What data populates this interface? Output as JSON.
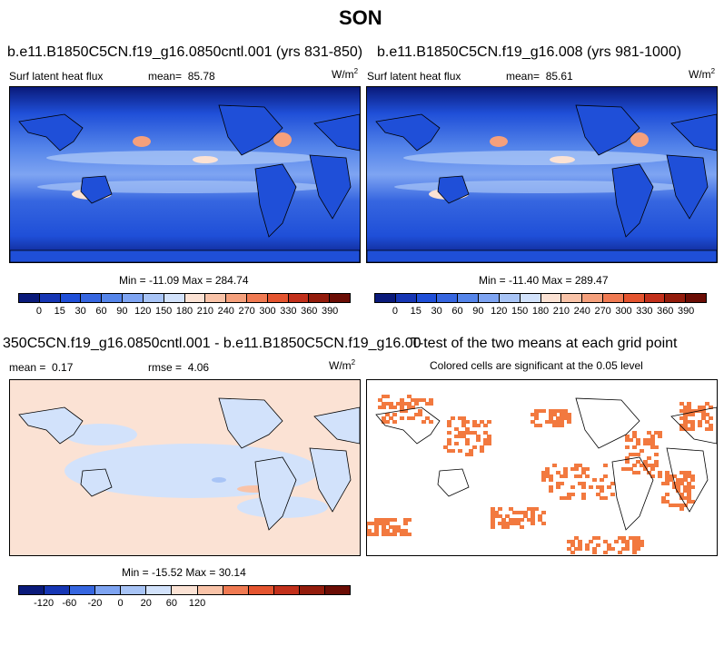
{
  "season": "SON",
  "panel1": {
    "title": "b.e11.B1850C5CN.f19_g16.0850cntl.001 (yrs 831-850)",
    "variable": "Surf latent heat flux",
    "mean_label": "mean=",
    "mean_value": "85.78",
    "units": "W/m",
    "units_sup": "2",
    "minmax": "Min = -11.09 Max = 284.74"
  },
  "panel2": {
    "title": "b.e11.B1850C5CN.f19_g16.008 (yrs 981-1000)",
    "variable": "Surf latent heat flux",
    "mean_label": "mean=",
    "mean_value": "85.61",
    "units": "W/m",
    "units_sup": "2",
    "minmax": "Min = -11.40 Max = 289.47"
  },
  "panel3": {
    "title": "350C5CN.f19_g16.0850cntl.001 - b.e11.B1850C5CN.f19_g16.008",
    "mean_label": "mean =",
    "mean_value": "0.17",
    "rmse_label": "rmse =",
    "rmse_value": "4.06",
    "units": "W/m",
    "units_sup": "2",
    "minmax": "Min = -15.52 Max = 30.14"
  },
  "panel4": {
    "title": "T-test of the two means at each grid point",
    "subtitle": "Colored cells are significant at the 0.05 level",
    "cell_color": "#f2793f"
  },
  "colorbar_abs": {
    "labels": [
      "0",
      "15",
      "30",
      "60",
      "90",
      "120",
      "150",
      "180",
      "210",
      "240",
      "270",
      "300",
      "330",
      "360",
      "390"
    ],
    "colors": [
      "#0a1a7a",
      "#1636b4",
      "#1f4fd8",
      "#3666e0",
      "#5585ea",
      "#7ea4f2",
      "#a8c4f6",
      "#d2e2fb",
      "#fbe2d4",
      "#f9c3a8",
      "#f5a07c",
      "#f07a52",
      "#e4542f",
      "#c2301b",
      "#931c0c",
      "#6b0d05"
    ]
  },
  "colorbar_diff": {
    "labels": [
      "-120",
      "-60",
      "-20",
      "0",
      "20",
      "60",
      "120"
    ],
    "colors": [
      "#0a1a7a",
      "#1636b4",
      "#3666e0",
      "#7ea4f2",
      "#a8c4f6",
      "#d2e2fb",
      "#fbe2d4",
      "#f9c3a8",
      "#f07a52",
      "#e4542f",
      "#c2301b",
      "#931c0c",
      "#6b0d05"
    ]
  }
}
